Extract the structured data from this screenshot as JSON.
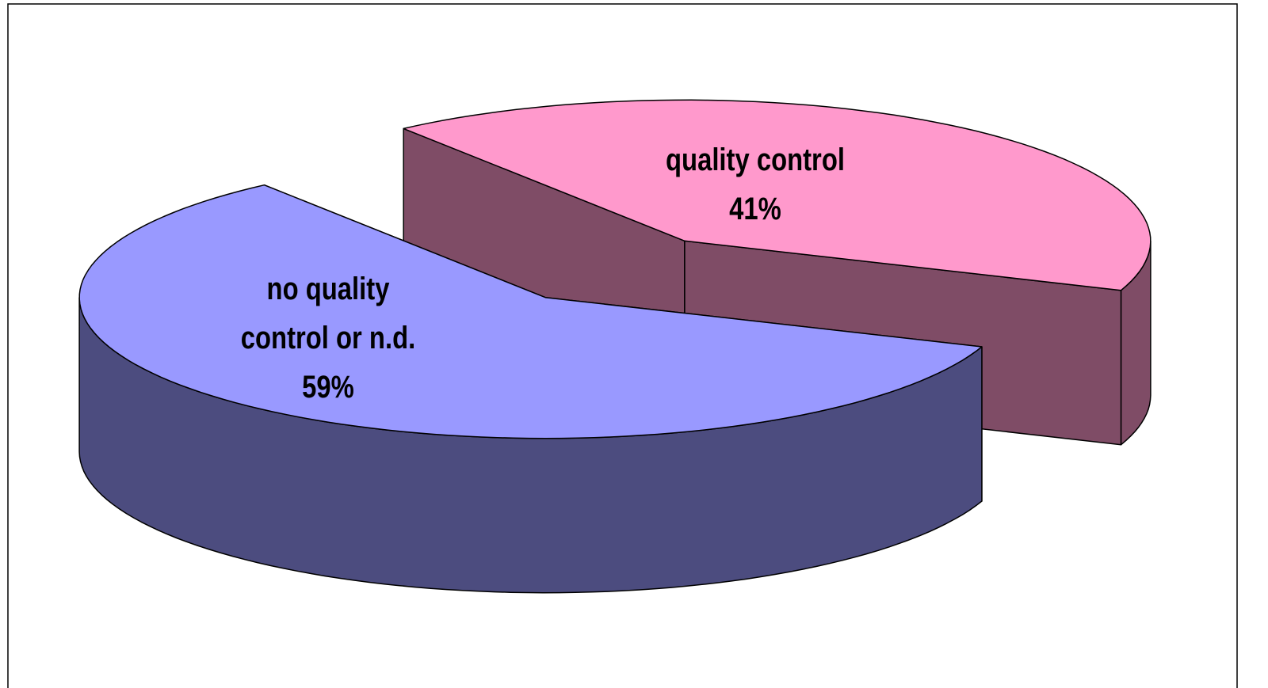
{
  "chart_data": {
    "type": "pie3d",
    "categories": [
      "quality control",
      "no quality control or n.d."
    ],
    "values": [
      41,
      59
    ],
    "value_labels": [
      "41%",
      "59%"
    ],
    "colors": [
      "#ff99cc",
      "#9999ff"
    ]
  }
}
